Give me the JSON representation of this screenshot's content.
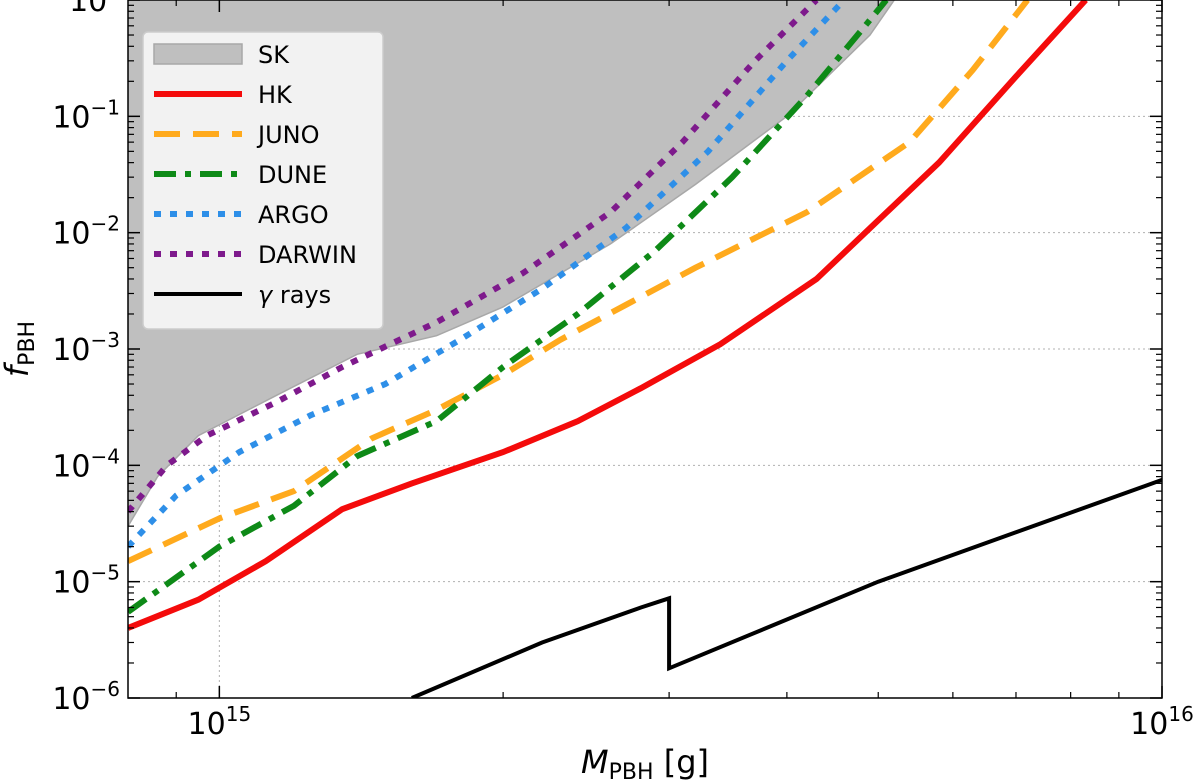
{
  "chart_data": {
    "type": "line",
    "xscale": "log",
    "yscale": "log",
    "xlim": [
      800000000000000.0,
      1e+16
    ],
    "ylim": [
      1e-06,
      1
    ],
    "xlabel": {
      "main": "M",
      "sub": "PBH",
      "unit": " [g]"
    },
    "ylabel": {
      "main": "f",
      "sub": "PBH"
    },
    "x_ticks": [
      {
        "value": 1000000000000000.0,
        "base": "10",
        "exp": "15"
      },
      {
        "value": 1e+16,
        "base": "10",
        "exp": "16"
      }
    ],
    "y_ticks": [
      {
        "value": 1.0,
        "base": "10",
        "exp": "0"
      },
      {
        "value": 0.1,
        "base": "10",
        "exp": "−1"
      },
      {
        "value": 0.01,
        "base": "10",
        "exp": "−2"
      },
      {
        "value": 0.001,
        "base": "10",
        "exp": "−3"
      },
      {
        "value": 0.0001,
        "base": "10",
        "exp": "−4"
      },
      {
        "value": 1e-05,
        "base": "10",
        "exp": "−5"
      },
      {
        "value": 1e-06,
        "base": "10",
        "exp": "−6"
      }
    ],
    "grid": true,
    "legend_position": "top-left",
    "series": [
      {
        "name": "SK",
        "style": "fill",
        "color": "#bfbfbf",
        "edge": "#a8a8a8",
        "x": [
          800000000000000.0,
          860000000000000.0,
          950000000000000.0,
          1150000000000000.0,
          1400000000000000.0,
          1700000000000000.0,
          2000000000000000.0,
          2600000000000000.0,
          3200000000000000.0,
          4000000000000000.0,
          4900000000000000.0,
          5200000000000000.0
        ],
        "y": [
          3e-05,
          8e-05,
          0.00018,
          0.0004,
          0.0009,
          0.0013,
          0.0023,
          0.008,
          0.026,
          0.1,
          0.5,
          1.0
        ]
      },
      {
        "name": "HK",
        "style": "solid",
        "color": "#f40b0b",
        "x": [
          800000000000000.0,
          950000000000000.0,
          1120000000000000.0,
          1350000000000000.0,
          1600000000000000.0,
          2000000000000000.0,
          2400000000000000.0,
          2800000000000000.0,
          3400000000000000.0,
          4300000000000000.0,
          5800000000000000.0,
          7000000000000000.0,
          8300000000000000.0
        ],
        "y": [
          4e-06,
          7e-06,
          1.5e-05,
          4.2e-05,
          7e-05,
          0.00013,
          0.00024,
          0.00046,
          0.0011,
          0.004,
          0.04,
          0.22,
          1.0
        ]
      },
      {
        "name": "JUNO",
        "style": "dashed",
        "color": "#ffaa1d",
        "x": [
          800000000000000.0,
          1000000000000000.0,
          1200000000000000.0,
          1450000000000000.0,
          1700000000000000.0,
          2000000000000000.0,
          2300000000000000.0,
          2700000000000000.0,
          3200000000000000.0,
          4200000000000000.0,
          5400000000000000.0,
          6300000000000000.0,
          7200000000000000.0
        ],
        "y": [
          1.5e-05,
          3.5e-05,
          6e-05,
          0.00017,
          0.0003,
          0.0006,
          0.0012,
          0.0024,
          0.005,
          0.015,
          0.06,
          0.25,
          1.0
        ]
      },
      {
        "name": "DUNE",
        "style": "dashdot",
        "color": "#0e8a17",
        "x": [
          800000000000000.0,
          1000000000000000.0,
          1200000000000000.0,
          1400000000000000.0,
          1700000000000000.0,
          2000000000000000.0,
          2400000000000000.0,
          2900000000000000.0,
          3500000000000000.0,
          4200000000000000.0,
          4800000000000000.0,
          5100000000000000.0
        ],
        "y": [
          5.5e-06,
          2e-05,
          4.5e-05,
          0.00012,
          0.00024,
          0.0007,
          0.002,
          0.007,
          0.03,
          0.15,
          0.55,
          1.0
        ]
      },
      {
        "name": "ARGO",
        "style": "dotted",
        "color": "#2e8fe8",
        "x": [
          800000000000000.0,
          900000000000000.0,
          1050000000000000.0,
          1250000000000000.0,
          1500000000000000.0,
          1800000000000000.0,
          2200000000000000.0,
          2700000000000000.0,
          3300000000000000.0,
          4000000000000000.0,
          4600000000000000.0
        ],
        "y": [
          2e-05,
          5.5e-05,
          0.00013,
          0.00027,
          0.0005,
          0.0012,
          0.0033,
          0.011,
          0.05,
          0.3,
          1.0
        ]
      },
      {
        "name": "DARWIN",
        "style": "dotted",
        "color": "#7e1a8c",
        "x": [
          800000000000000.0,
          880000000000000.0,
          970000000000000.0,
          1150000000000000.0,
          1350000000000000.0,
          1700000000000000.0,
          2100000000000000.0,
          2600000000000000.0,
          3100000000000000.0,
          3700000000000000.0,
          4300000000000000.0
        ],
        "y": [
          4e-05,
          0.0001,
          0.00018,
          0.00035,
          0.0007,
          0.0017,
          0.0045,
          0.015,
          0.06,
          0.3,
          1.0
        ]
      },
      {
        "name": "γ rays",
        "style": "solid",
        "color": "#000000",
        "x": [
          1600000000000000.0,
          2200000000000000.0,
          2800000000000000.0,
          3000000000000000.0,
          3000000000000000.0,
          5000000000000000.0,
          1e+16
        ],
        "y": [
          1e-06,
          3e-06,
          6e-06,
          7.2e-06,
          1.8e-06,
          1e-05,
          7.5e-05
        ]
      }
    ]
  }
}
